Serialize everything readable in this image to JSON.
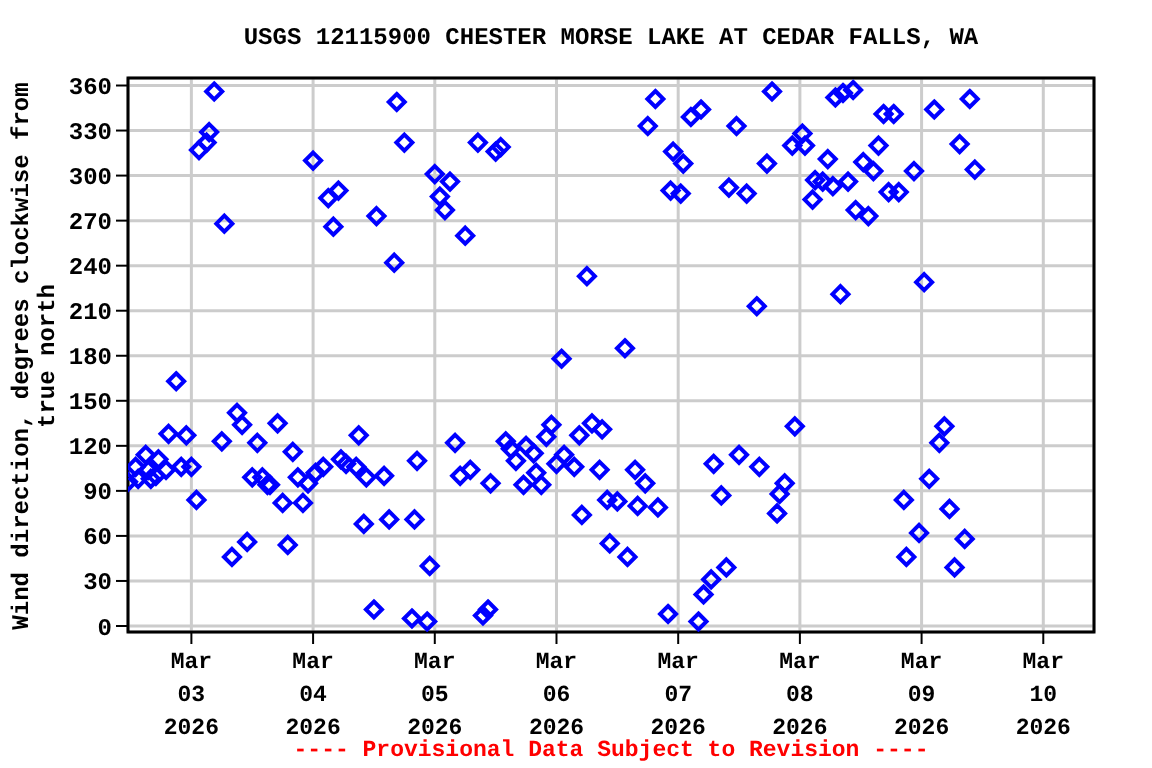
{
  "chart_data": {
    "type": "scatter",
    "title": "USGS 12115900 CHESTER MORSE LAKE AT CEDAR FALLS, WA",
    "ylabel": "Wind direction, degrees clockwise from\ntrue north",
    "annotations": [
      "---- Provisional Data Subject to Revision ----"
    ],
    "x": [
      "2026-03-02T11:30",
      "2026-03-02T13:00",
      "2026-03-02T13:30",
      "2026-03-02T15:00",
      "2026-03-02T15:30",
      "2026-03-02T16:00",
      "2026-03-02T17:00",
      "2026-03-02T17:30",
      "2026-03-02T19:00",
      "2026-03-02T19:30",
      "2026-03-02T21:00",
      "2026-03-02T22:00",
      "2026-03-02T23:00",
      "2026-03-03T00:00",
      "2026-03-03T01:00",
      "2026-03-03T01:30",
      "2026-03-03T03:00",
      "2026-03-03T03:30",
      "2026-03-03T04:30",
      "2026-03-03T06:00",
      "2026-03-03T06:30",
      "2026-03-03T08:00",
      "2026-03-03T09:00",
      "2026-03-03T10:00",
      "2026-03-03T11:00",
      "2026-03-03T12:00",
      "2026-03-03T13:00",
      "2026-03-03T14:00",
      "2026-03-03T15:00",
      "2026-03-03T15:30",
      "2026-03-03T17:00",
      "2026-03-03T18:00",
      "2026-03-03T19:00",
      "2026-03-03T20:00",
      "2026-03-03T21:00",
      "2026-03-03T22:00",
      "2026-03-03T23:00",
      "2026-03-04T00:00",
      "2026-03-04T00:30",
      "2026-03-04T02:00",
      "2026-03-04T03:00",
      "2026-03-04T04:00",
      "2026-03-04T05:00",
      "2026-03-04T05:30",
      "2026-03-04T06:30",
      "2026-03-04T08:30",
      "2026-03-04T09:00",
      "2026-03-04T10:00",
      "2026-03-04T10:30",
      "2026-03-04T12:00",
      "2026-03-04T12:30",
      "2026-03-04T14:00",
      "2026-03-04T15:00",
      "2026-03-04T16:00",
      "2026-03-04T16:30",
      "2026-03-04T18:00",
      "2026-03-04T19:30",
      "2026-03-04T20:00",
      "2026-03-04T20:30",
      "2026-03-04T22:30",
      "2026-03-04T23:00",
      "2026-03-05T00:00",
      "2026-03-05T01:00",
      "2026-03-05T02:00",
      "2026-03-05T03:00",
      "2026-03-05T04:00",
      "2026-03-05T05:00",
      "2026-03-05T06:00",
      "2026-03-05T07:00",
      "2026-03-05T08:30",
      "2026-03-05T09:30",
      "2026-03-05T10:30",
      "2026-03-05T11:00",
      "2026-03-05T12:00",
      "2026-03-05T13:00",
      "2026-03-05T14:00",
      "2026-03-05T15:00",
      "2026-03-05T16:00",
      "2026-03-05T17:30",
      "2026-03-05T18:00",
      "2026-03-05T19:30",
      "2026-03-05T20:00",
      "2026-03-05T21:00",
      "2026-03-05T22:00",
      "2026-03-05T23:00",
      "2026-03-06T00:00",
      "2026-03-06T01:00",
      "2026-03-06T01:30",
      "2026-03-06T03:30",
      "2026-03-06T04:30",
      "2026-03-06T05:00",
      "2026-03-06T06:00",
      "2026-03-06T07:00",
      "2026-03-06T08:30",
      "2026-03-06T09:00",
      "2026-03-06T10:00",
      "2026-03-06T10:30",
      "2026-03-06T12:00",
      "2026-03-06T13:30",
      "2026-03-06T14:00",
      "2026-03-06T15:30",
      "2026-03-06T16:00",
      "2026-03-06T17:30",
      "2026-03-06T18:00",
      "2026-03-06T19:30",
      "2026-03-06T20:00",
      "2026-03-06T22:00",
      "2026-03-06T22:30",
      "2026-03-06T23:00",
      "2026-03-07T00:30",
      "2026-03-07T01:00",
      "2026-03-07T02:30",
      "2026-03-07T04:00",
      "2026-03-07T04:30",
      "2026-03-07T05:00",
      "2026-03-07T06:30",
      "2026-03-07T07:00",
      "2026-03-07T08:30",
      "2026-03-07T09:30",
      "2026-03-07T10:00",
      "2026-03-07T11:30",
      "2026-03-07T12:00",
      "2026-03-07T13:30",
      "2026-03-07T15:30",
      "2026-03-07T16:00",
      "2026-03-07T17:30",
      "2026-03-07T18:30",
      "2026-03-07T19:30",
      "2026-03-07T20:00",
      "2026-03-07T21:00",
      "2026-03-07T22:30",
      "2026-03-07T23:00",
      "2026-03-08T00:30",
      "2026-03-08T01:00",
      "2026-03-08T02:30",
      "2026-03-08T03:00",
      "2026-03-08T04:30",
      "2026-03-08T05:30",
      "2026-03-08T06:30",
      "2026-03-08T07:00",
      "2026-03-08T08:00",
      "2026-03-08T08:30",
      "2026-03-08T09:30",
      "2026-03-08T10:30",
      "2026-03-08T11:00",
      "2026-03-08T12:30",
      "2026-03-08T13:30",
      "2026-03-08T14:30",
      "2026-03-08T15:30",
      "2026-03-08T16:30",
      "2026-03-08T17:30",
      "2026-03-08T18:30",
      "2026-03-08T19:30",
      "2026-03-08T20:30",
      "2026-03-08T21:00",
      "2026-03-08T22:30",
      "2026-03-08T23:30",
      "2026-03-09T00:30",
      "2026-03-09T01:30",
      "2026-03-09T02:30",
      "2026-03-09T03:30",
      "2026-03-09T04:30",
      "2026-03-09T05:30",
      "2026-03-09T06:30",
      "2026-03-09T07:30",
      "2026-03-09T08:30",
      "2026-03-09T09:30",
      "2026-03-09T10:30"
    ],
    "series": [
      {
        "color": "#0000ff",
        "values": [
          96,
          106,
          98,
          114,
          104,
          98,
          100,
          111,
          104,
          128,
          163,
          106,
          127,
          106,
          84,
          317,
          322,
          329,
          356,
          123,
          268,
          46,
          142,
          134,
          56,
          99,
          122,
          99,
          94,
          94,
          135,
          82,
          54,
          116,
          99,
          82,
          95,
          310,
          102,
          106,
          285,
          266,
          290,
          111,
          108,
          106,
          127,
          68,
          99,
          11,
          273,
          100,
          71,
          242,
          349,
          322,
          5,
          71,
          110,
          3,
          40,
          301,
          286,
          277,
          296,
          122,
          100,
          260,
          104,
          322,
          7,
          11,
          95,
          316,
          319,
          123,
          118,
          110,
          94,
          120,
          115,
          102,
          94,
          126,
          134,
          108,
          178,
          114,
          106,
          127,
          74,
          233,
          135,
          104,
          131,
          84,
          55,
          83,
          185,
          46,
          104,
          80,
          95,
          333,
          351,
          79,
          8,
          290,
          316,
          288,
          308,
          339,
          3,
          344,
          21,
          31,
          108,
          87,
          39,
          292,
          333,
          114,
          288,
          213,
          106,
          308,
          356,
          75,
          88,
          95,
          320,
          133,
          328,
          320,
          284,
          297,
          296,
          311,
          293,
          352,
          221,
          355,
          296,
          357,
          277,
          309,
          273,
          303,
          320,
          341,
          289,
          341,
          289,
          84,
          46,
          303,
          62,
          229,
          98,
          344,
          122,
          133,
          78,
          39,
          321,
          58,
          351,
          304
        ]
      }
    ],
    "xlim": [
      "2026-03-02T11:30",
      "2026-03-10T10:00"
    ],
    "xticks": [
      {
        "value": "2026-03-03",
        "label": "Mar\n03\n2026"
      },
      {
        "value": "2026-03-04",
        "label": "Mar\n04\n2026"
      },
      {
        "value": "2026-03-05",
        "label": "Mar\n05\n2026"
      },
      {
        "value": "2026-03-06",
        "label": "Mar\n06\n2026"
      },
      {
        "value": "2026-03-07",
        "label": "Mar\n07\n2026"
      },
      {
        "value": "2026-03-08",
        "label": "Mar\n08\n2026"
      },
      {
        "value": "2026-03-09",
        "label": "Mar\n09\n2026"
      },
      {
        "value": "2026-03-10",
        "label": "Mar\n10\n2026"
      }
    ],
    "ylim": [
      -4,
      365
    ],
    "yticks": [
      0,
      30,
      60,
      90,
      120,
      150,
      180,
      210,
      240,
      270,
      300,
      330,
      360
    ],
    "grid": true,
    "legend": false,
    "marker": "diamond"
  }
}
